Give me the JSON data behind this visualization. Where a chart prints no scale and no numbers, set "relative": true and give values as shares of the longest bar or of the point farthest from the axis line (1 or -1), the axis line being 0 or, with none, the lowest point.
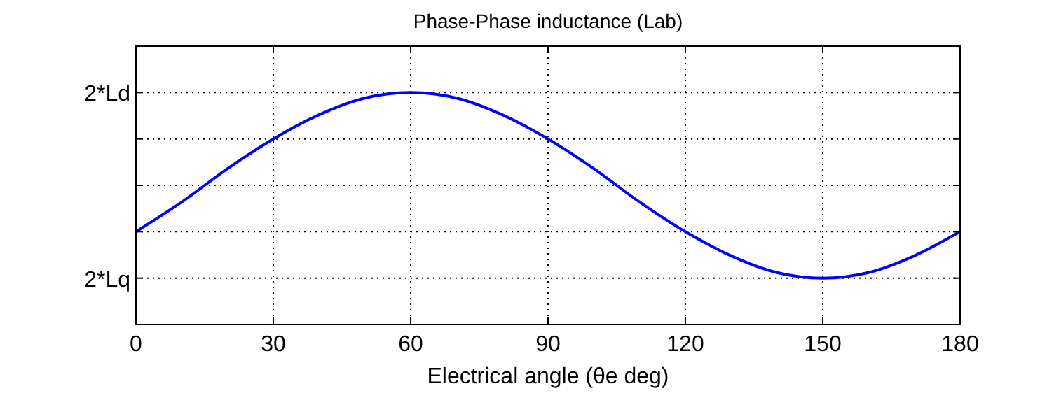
{
  "chart_data": {
    "type": "line",
    "title": "Phase-Phase inductance (Lab)",
    "xlabel": "Electrical angle (θe deg)",
    "x": [
      0,
      10,
      20,
      30,
      40,
      50,
      60,
      70,
      80,
      90,
      100,
      110,
      120,
      130,
      140,
      150,
      160,
      170,
      180
    ],
    "series": [
      {
        "color": "#0000ff",
        "values": [
          0.25,
          0.41,
          0.59,
          0.75,
          0.88,
          0.97,
          1,
          0.97,
          0.88,
          0.75,
          0.59,
          0.41,
          0.25,
          0.12,
          0.03,
          0,
          0.03,
          0.12,
          0.25
        ]
      }
    ],
    "xlim": [
      0,
      180
    ],
    "xticks": [
      0,
      30,
      60,
      90,
      120,
      150,
      180
    ],
    "relative": true,
    "annotations": [
      "2*Lq",
      "2*Ld"
    ],
    "grid": true,
    "line_style": "solid",
    "marker": "none"
  }
}
